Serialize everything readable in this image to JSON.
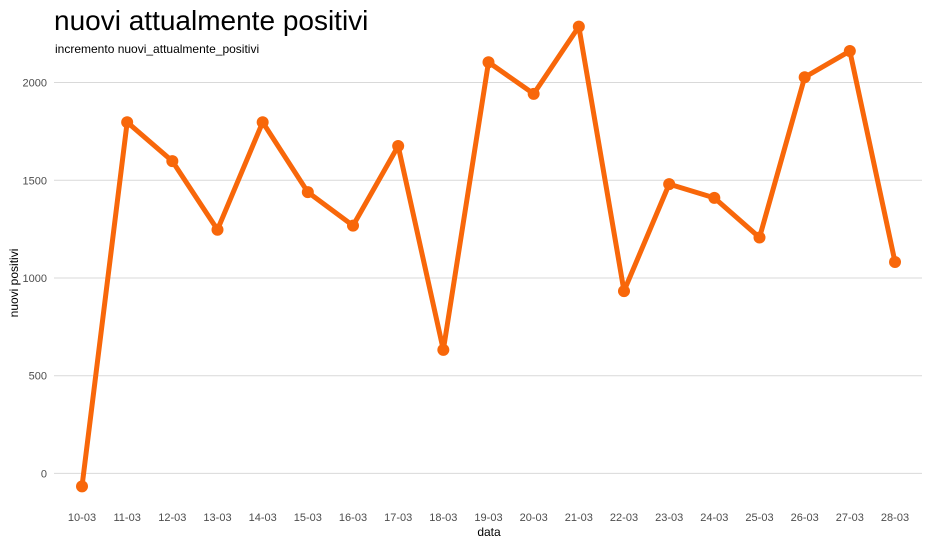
{
  "chart_data": {
    "type": "line",
    "title": "nuovi attualmente positivi",
    "subtitle": "incremento nuovi_attualmente_positivi",
    "xlabel": "data",
    "ylabel": "nuovi positivi",
    "categories": [
      "10-03",
      "11-03",
      "12-03",
      "13-03",
      "14-03",
      "15-03",
      "16-03",
      "17-03",
      "18-03",
      "19-03",
      "20-03",
      "21-03",
      "22-03",
      "23-03",
      "24-03",
      "25-03",
      "26-03",
      "27-03",
      "28-03"
    ],
    "series": [
      {
        "values": [
          -66,
          1797,
          1598,
          1247,
          1797,
          1439,
          1268,
          1675,
          632,
          2104,
          1942,
          2286,
          933,
          1480,
          1410,
          1207,
          2027,
          2161,
          1082
        ]
      }
    ],
    "yticks": [
      0,
      500,
      1000,
      1500,
      2000
    ],
    "ylim": [
      -95,
      2105
    ],
    "grid": true,
    "legend": "none",
    "line_color": "#f8670a"
  }
}
